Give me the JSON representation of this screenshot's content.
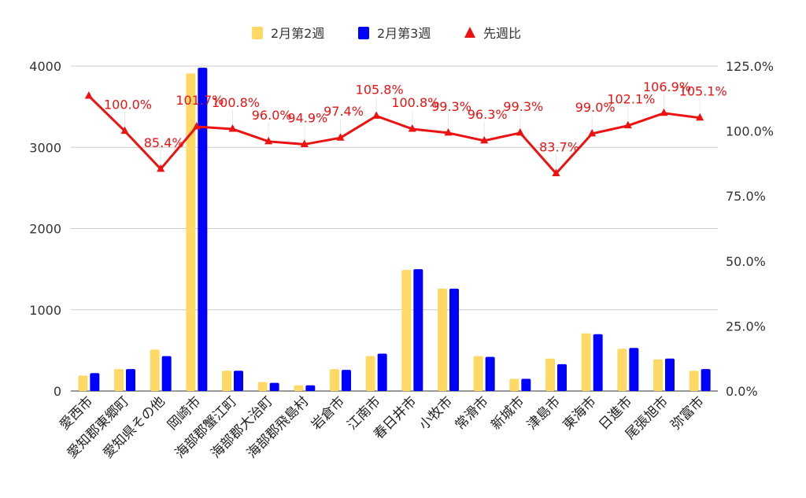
{
  "chart_data": {
    "type": "bar",
    "categories": [
      "愛西市",
      "愛知郡東郷町",
      "愛知県その他",
      "岡崎市",
      "海部郡蟹江町",
      "海部郡大治町",
      "海部郡飛島村",
      "岩倉市",
      "江南市",
      "春日井市",
      "小牧市",
      "常滑市",
      "新城市",
      "津島市",
      "東海市",
      "日進市",
      "尾張旭市",
      "弥富市"
    ],
    "series": [
      {
        "name": "2月第2週",
        "axis": "left",
        "color": "#ffd966",
        "values": [
          190,
          270,
          510,
          3910,
          250,
          110,
          70,
          270,
          430,
          1490,
          1260,
          430,
          150,
          400,
          710,
          520,
          390,
          250
        ]
      },
      {
        "name": "2月第3週",
        "axis": "left",
        "color": "#0000ff",
        "values": [
          220,
          270,
          430,
          3980,
          250,
          100,
          70,
          260,
          460,
          1500,
          1260,
          420,
          150,
          330,
          700,
          530,
          400,
          270
        ]
      },
      {
        "name": "先週比",
        "type": "line",
        "axis": "right",
        "color": "#ee1111",
        "values": [
          113.5,
          100.0,
          85.4,
          101.7,
          100.8,
          96.0,
          94.9,
          97.4,
          105.8,
          100.8,
          99.3,
          96.3,
          99.3,
          83.7,
          99.0,
          102.1,
          106.9,
          105.1
        ],
        "labels": [
          "",
          "100.0%",
          "85.4%",
          "101.7%",
          "100.8%",
          "96.0%",
          "94.9%",
          "97.4%",
          "105.8%",
          "100.8%",
          "99.3%",
          "96.3%",
          "99.3%",
          "83.7%",
          "99.0%",
          "102.1%",
          "106.9%",
          "105.1%"
        ]
      }
    ],
    "left_axis": {
      "min": 0,
      "max": 4000,
      "ticks": [
        0,
        1000,
        2000,
        3000,
        4000
      ]
    },
    "right_axis": {
      "min": 0,
      "max": 125,
      "ticks": [
        0,
        25,
        50,
        75,
        100,
        125
      ],
      "tick_labels": [
        "0.0%",
        "25.0%",
        "50.0%",
        "75.0%",
        "100.0%",
        "125.0%"
      ]
    },
    "legend_position": "top-center",
    "grid": true
  }
}
